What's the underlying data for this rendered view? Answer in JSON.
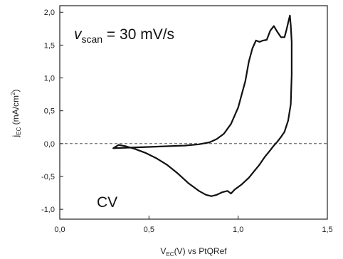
{
  "chart_data": {
    "type": "line",
    "title": "",
    "xlabel": {
      "main": "V",
      "sub": "EC",
      "rest": "(V) vs PtQRef"
    },
    "ylabel": {
      "main": "j",
      "sub": "EC",
      "rest": " (mA/cm",
      "sup": "2",
      "close": ")"
    },
    "xlim": [
      0,
      1.5
    ],
    "ylim": [
      -1.15,
      2.1
    ],
    "xticks": [
      {
        "value": 0.0,
        "label": "0,0"
      },
      {
        "value": 0.5,
        "label": "0,5"
      },
      {
        "value": 1.0,
        "label": "1,0"
      },
      {
        "value": 1.5,
        "label": "1,5"
      }
    ],
    "yticks": [
      {
        "value": -1.0,
        "label": "-1,0"
      },
      {
        "value": -0.5,
        "label": "-0,5"
      },
      {
        "value": 0.0,
        "label": "0,0"
      },
      {
        "value": 0.5,
        "label": "0,5"
      },
      {
        "value": 1.0,
        "label": "1,0"
      },
      {
        "value": 1.5,
        "label": "1,5"
      },
      {
        "value": 2.0,
        "label": "2,0"
      }
    ],
    "reference_line": {
      "y": 0.0,
      "style": "dashed"
    },
    "grid": false,
    "annotations": {
      "scan_rate": {
        "var": "v",
        "sub": "scan",
        "text": " = 30 mV/s"
      },
      "label": "CV"
    },
    "series": [
      {
        "color": "#111111",
        "x": [
          0.3,
          0.4,
          0.5,
          0.6,
          0.7,
          0.78,
          0.84,
          0.88,
          0.92,
          0.96,
          1.0,
          1.04,
          1.06,
          1.08,
          1.1,
          1.12,
          1.14,
          1.16,
          1.18,
          1.2,
          1.22,
          1.24,
          1.26,
          1.27,
          1.28,
          1.29,
          1.295,
          1.3,
          1.3,
          1.295,
          1.28,
          1.26,
          1.24,
          1.22,
          1.2,
          1.18,
          1.15,
          1.12,
          1.09,
          1.06,
          1.02,
          0.98,
          0.96,
          0.94,
          0.91,
          0.88,
          0.85,
          0.82,
          0.78,
          0.72,
          0.66,
          0.6,
          0.54,
          0.48,
          0.42,
          0.37,
          0.33,
          0.3
        ],
        "y": [
          -0.07,
          -0.06,
          -0.05,
          -0.04,
          -0.03,
          -0.01,
          0.02,
          0.07,
          0.15,
          0.3,
          0.55,
          0.95,
          1.25,
          1.45,
          1.57,
          1.55,
          1.57,
          1.58,
          1.72,
          1.79,
          1.7,
          1.62,
          1.62,
          1.72,
          1.84,
          1.95,
          1.8,
          1.55,
          1.05,
          0.6,
          0.35,
          0.18,
          0.1,
          0.03,
          -0.03,
          -0.1,
          -0.2,
          -0.32,
          -0.42,
          -0.52,
          -0.62,
          -0.7,
          -0.76,
          -0.72,
          -0.74,
          -0.78,
          -0.8,
          -0.78,
          -0.72,
          -0.6,
          -0.45,
          -0.32,
          -0.22,
          -0.14,
          -0.08,
          -0.04,
          -0.02,
          -0.07
        ]
      }
    ]
  }
}
